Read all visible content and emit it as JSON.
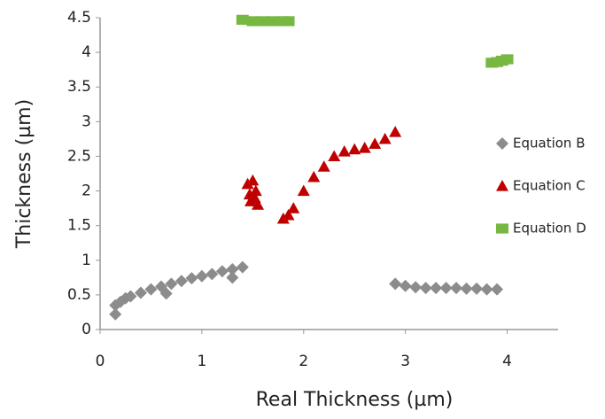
{
  "chart_data": {
    "type": "scatter",
    "x_label": "Real Thickness (µm)",
    "y_label": "Thickness (µm)",
    "xlim": [
      0,
      4.5
    ],
    "xticks": [
      0,
      1,
      2,
      3,
      4
    ],
    "ylim": [
      0,
      4.5
    ],
    "yticks": [
      0,
      0.5,
      1,
      1.5,
      2,
      2.5,
      3,
      3.5,
      4,
      4.5
    ],
    "legend": "right",
    "series": [
      {
        "name": "Equation B",
        "color": "#8c8c8c",
        "marker": "diamond",
        "x": [
          0.15,
          0.2,
          0.25,
          0.3,
          0.4,
          0.5,
          0.6,
          0.7,
          0.8,
          0.9,
          1.0,
          1.1,
          1.2,
          1.3,
          1.4,
          0.15,
          0.65,
          1.3,
          2.9,
          3.0,
          3.1,
          3.2,
          3.3,
          3.4,
          3.5,
          3.6,
          3.7,
          3.8,
          3.9
        ],
        "values": [
          0.35,
          0.4,
          0.45,
          0.48,
          0.53,
          0.58,
          0.62,
          0.66,
          0.7,
          0.74,
          0.77,
          0.8,
          0.84,
          0.87,
          0.9,
          0.22,
          0.52,
          0.75,
          0.66,
          0.63,
          0.61,
          0.6,
          0.6,
          0.6,
          0.6,
          0.59,
          0.59,
          0.58,
          0.58
        ]
      },
      {
        "name": "Equation C",
        "color": "#c00000",
        "marker": "triangle",
        "x": [
          1.45,
          1.48,
          1.5,
          1.52,
          1.55,
          1.47,
          1.53,
          1.8,
          1.85,
          1.9,
          2.0,
          2.1,
          2.2,
          2.3,
          2.4,
          2.5,
          2.6,
          2.7,
          2.8,
          2.9
        ],
        "values": [
          2.1,
          1.85,
          2.15,
          1.9,
          1.8,
          1.95,
          2.0,
          1.6,
          1.65,
          1.75,
          2.0,
          2.2,
          2.35,
          2.5,
          2.57,
          2.6,
          2.62,
          2.68,
          2.75,
          2.85
        ]
      },
      {
        "name": "Equation D",
        "color": "#77b843",
        "marker": "square",
        "x": [
          1.4,
          1.5,
          1.6,
          1.7,
          1.8,
          1.85,
          3.85,
          3.9,
          3.95,
          4.0
        ],
        "values": [
          4.47,
          4.45,
          4.45,
          4.45,
          4.45,
          4.45,
          3.85,
          3.86,
          3.88,
          3.9
        ]
      }
    ]
  }
}
